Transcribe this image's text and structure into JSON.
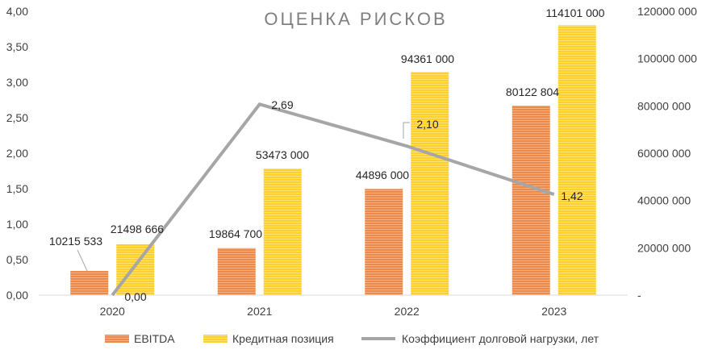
{
  "chart_data": {
    "type": "bar",
    "title": "ОЦЕНКА РИСКОВ",
    "categories": [
      "2020",
      "2021",
      "2022",
      "2023"
    ],
    "series": [
      {
        "name": "EBITDA",
        "kind": "bar",
        "axis": "right",
        "color": "#ed8a4a",
        "values": [
          10215533,
          19864700,
          44896000,
          80122804
        ],
        "labels": [
          "10215 533",
          "19864 700",
          "44896 000",
          "80122 804"
        ]
      },
      {
        "name": "Кредитная позиция",
        "kind": "bar",
        "axis": "right",
        "color": "#ffd43a",
        "values": [
          21498666,
          53473000,
          94361000,
          114101000
        ],
        "labels": [
          "21498 666",
          "53473 000",
          "94361 000",
          "114101 000"
        ]
      },
      {
        "name": "Коэффициент долговой нагрузки, лет",
        "kind": "line",
        "axis": "left",
        "color": "#a6a6a6",
        "values": [
          0.0,
          2.69,
          2.1,
          1.42
        ],
        "labels": [
          "0,00",
          "2,69",
          "2,10",
          "1,42"
        ]
      }
    ],
    "left_axis": {
      "ylim": [
        0,
        4
      ],
      "ticks": [
        0,
        0.5,
        1,
        1.5,
        2,
        2.5,
        3,
        3.5,
        4
      ],
      "tick_labels": [
        "0,00",
        "0,50",
        "1,00",
        "1,50",
        "2,00",
        "2,50",
        "3,00",
        "3,50",
        "4,00"
      ]
    },
    "right_axis": {
      "ylim": [
        0,
        120000000
      ],
      "ticks": [
        0,
        20000000,
        40000000,
        60000000,
        80000000,
        100000000,
        120000000
      ],
      "tick_labels": [
        "-",
        "20000 000",
        "40000 000",
        "60000 000",
        "80000 000",
        "100000 000",
        "120000 000"
      ]
    },
    "grid": false,
    "legend_position": "bottom"
  }
}
